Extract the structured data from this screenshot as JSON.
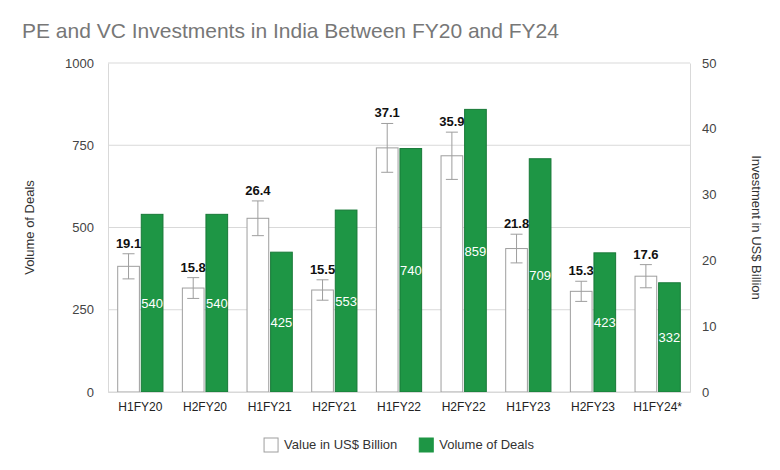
{
  "chart_data": {
    "type": "bar",
    "title": "PE and VC Investments in India Between FY20 and FY24",
    "categories": [
      "H1FY20",
      "H2FY20",
      "H1FY21",
      "H2FY21",
      "H1FY22",
      "H2FY22",
      "H1FY23",
      "H2FY23",
      "H1FY24*"
    ],
    "y_label": "Volume of Deals",
    "y2_label": "Investment in US$ Billion",
    "ylim": [
      0,
      1000
    ],
    "yticks": [
      0,
      250,
      500,
      750,
      1000
    ],
    "y2lim": [
      0,
      50
    ],
    "y2ticks": [
      0,
      10,
      20,
      30,
      40,
      50
    ],
    "grid": true,
    "legend": "bottom",
    "data_labels": true,
    "series": [
      {
        "name": "Value in US$ Billion",
        "color": "#ffffff",
        "axis": "y2",
        "values": [
          19.1,
          15.8,
          26.4,
          15.5,
          37.1,
          35.9,
          21.8,
          15.3,
          17.6
        ],
        "errors": [
          1.91,
          1.58,
          2.64,
          1.55,
          3.71,
          3.59,
          2.18,
          1.53,
          1.76
        ]
      },
      {
        "name": "Volume of Deals",
        "color": "#1e9645",
        "values": [
          540,
          540,
          425,
          553,
          740,
          859,
          709,
          423,
          332
        ]
      }
    ]
  }
}
